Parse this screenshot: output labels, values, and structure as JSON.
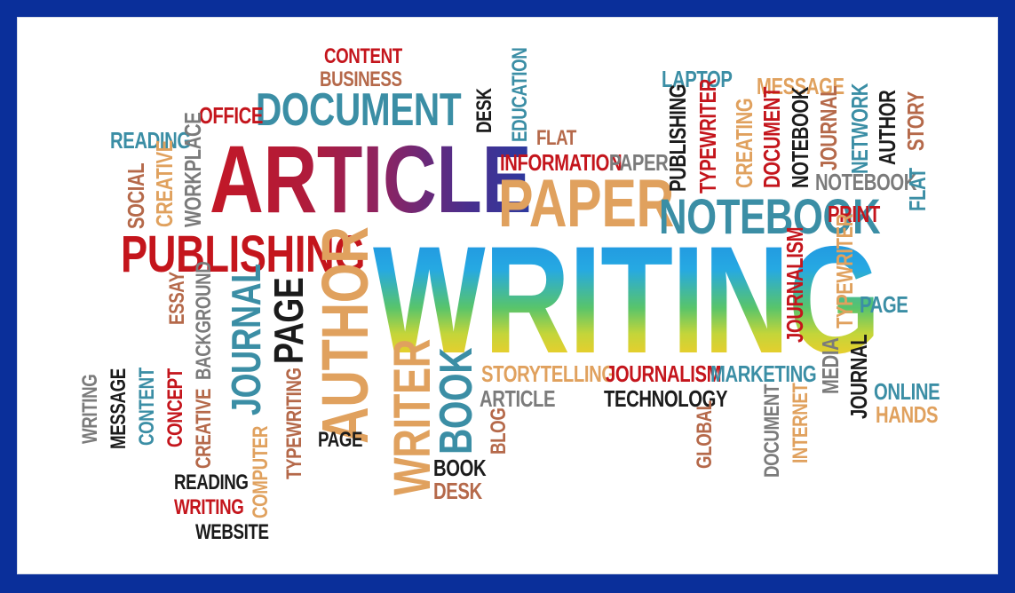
{
  "colors": {
    "border_blue": "#0a2f9a",
    "red": "#c4151c",
    "teal": "#3b8ea5",
    "tan": "#e0a15e",
    "brown": "#b5694a",
    "gray": "#7b7b7b",
    "black": "#1b1b1b"
  },
  "words": {
    "content_top": "CONTENT",
    "business": "BUSINESS",
    "document_top": "DOCUMENT",
    "office": "OFFICE",
    "reading_top": "READING",
    "article_big": "ARTICLE",
    "desk_top": "DESK",
    "education": "EDUCATION",
    "flat_mid": "FLAT",
    "information": "INFORMATION",
    "paper_small": "PAPER",
    "paper_big": "PAPER",
    "laptop": "LAPTOP",
    "message_top": "MESSAGE",
    "publishing_v": "PUBLISHING",
    "typewriter_v": "TYPEWRITER",
    "creating": "CREATING",
    "document_v": "DOCUMENT",
    "notebook_v": "NOTEBOOK",
    "journal_v": "JOURNAL",
    "network": "NETWORK",
    "author_v": "AUTHOR",
    "story": "STORY",
    "notebook_small": "NOTEBOOK",
    "flat_right": "FLAT",
    "notebook_big": "NOTEBOOK",
    "print": "PRINT",
    "social": "SOCIAL",
    "creative_v": "CREATIVE",
    "workplace": "WORKPLACE",
    "publishing_big": "PUBLISHING",
    "author_big": "AUTHOR",
    "writing_big": "WRITING",
    "journalism_v": "JOURNALISM",
    "typewriter_right": "TYPEWRITER",
    "page_right": "PAGE",
    "essay": "ESSAY",
    "background": "BACKGROUND",
    "journal_big": "JOURNAL",
    "page_big": "PAGE",
    "storytelling": "STORYTELLING",
    "journalism_h": "JOURNALISM",
    "marketing": "MARKETING",
    "article_small": "ARTICLE",
    "technology": "TECHNOLOGY",
    "media": "MEDIA",
    "journal_right": "JOURNAL",
    "online": "ONLINE",
    "hands": "HANDS",
    "writing_small_v": "WRITING",
    "message_v": "MESSAGE",
    "content_v": "CONTENT",
    "concept": "CONCEPT",
    "creative_bg": "CREATIVE",
    "typewriting": "TYPEWRITING",
    "computer": "COMPUTER",
    "page_small": "PAGE",
    "writer": "WRITER",
    "book_big": "BOOK",
    "blog": "BLOG",
    "book_small": "BOOK",
    "desk_small": "DESK",
    "global": "GLOBAL",
    "document_low": "DOCUMENT",
    "internet": "INTERNET",
    "reading_low": "READING",
    "writing_low": "WRITING",
    "website": "WEBSITE"
  }
}
